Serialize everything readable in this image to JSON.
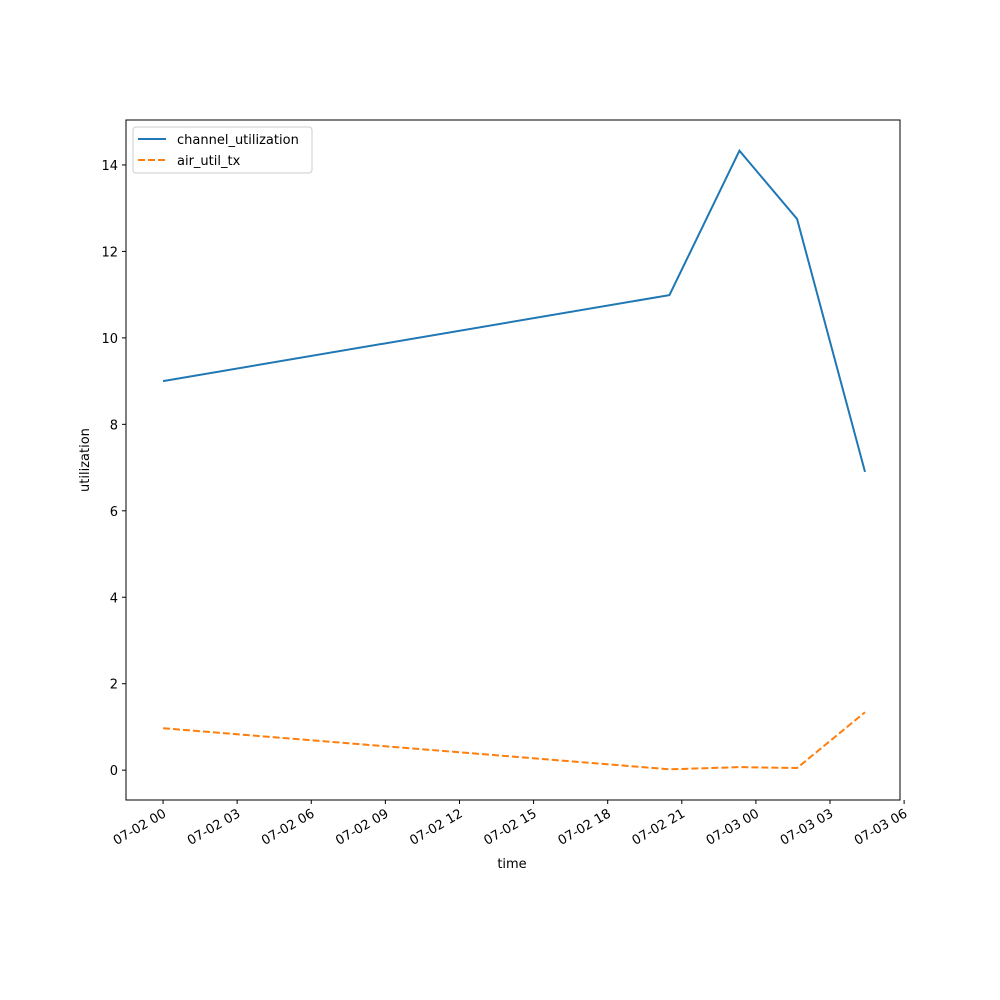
{
  "chart_data": {
    "type": "line",
    "x_label": "time",
    "y_label": "utilization",
    "x": [
      "07-02 00:00",
      "07-02 20:30",
      "07-02 23:20",
      "07-03 01:40",
      "07-03 04:25"
    ],
    "series": [
      {
        "name": "channel_utilization",
        "color": "#1f77b4",
        "dash": "solid",
        "values": [
          9.0,
          10.99,
          14.33,
          12.75,
          6.9
        ]
      },
      {
        "name": "air_util_tx",
        "color": "#ff7f0e",
        "dash": "dashed",
        "values": [
          0.97,
          0.02,
          0.07,
          0.05,
          1.34
        ]
      }
    ],
    "xlim": [
      "07-01 22:30",
      "07-03 05:50"
    ],
    "xticks": [
      "07-02 00",
      "07-02 03",
      "07-02 06",
      "07-02 09",
      "07-02 12",
      "07-02 15",
      "07-02 18",
      "07-02 21",
      "07-03 00",
      "07-03 03",
      "07-03 06"
    ],
    "ylim": [
      -0.69,
      15.04
    ],
    "yticks": [
      0,
      2,
      4,
      6,
      8,
      10,
      12,
      14
    ],
    "legend": "upper left"
  }
}
